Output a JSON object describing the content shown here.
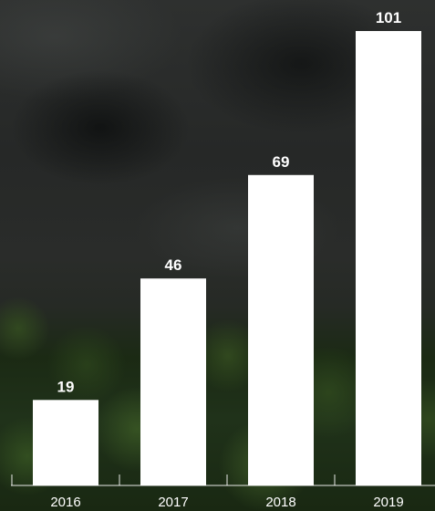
{
  "chart_data": {
    "type": "bar",
    "categories": [
      "2016",
      "2017",
      "2018",
      "2019"
    ],
    "values": [
      19,
      46,
      69,
      101
    ],
    "title": "",
    "xlabel": "",
    "ylabel": "",
    "ylim": [
      0,
      101
    ],
    "grid": false,
    "legend": "none",
    "colors": {
      "bar": "#ffffff",
      "text": "#ffffff"
    }
  }
}
